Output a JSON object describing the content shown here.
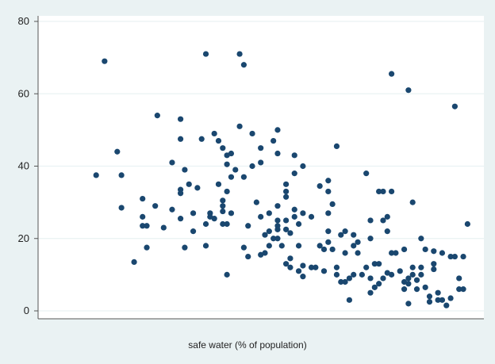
{
  "chart_data": {
    "type": "scatter",
    "title": "",
    "xlabel": "safe water (% of population)",
    "ylabel": "",
    "ylim": [
      0,
      80
    ],
    "yticks": [
      0,
      20,
      40,
      60,
      80
    ],
    "xlim": [
      0,
      100
    ],
    "grid": true,
    "marker_color": "#1a476f",
    "points": [
      [
        10,
        37.5
      ],
      [
        12,
        69
      ],
      [
        15,
        44
      ],
      [
        16,
        37.5
      ],
      [
        16,
        28.5
      ],
      [
        19,
        13.5
      ],
      [
        21,
        31
      ],
      [
        21,
        26
      ],
      [
        21,
        23.5
      ],
      [
        22,
        23.5
      ],
      [
        22,
        17.5
      ],
      [
        24,
        29
      ],
      [
        24.5,
        54
      ],
      [
        26,
        23
      ],
      [
        28,
        41
      ],
      [
        28,
        28
      ],
      [
        30,
        25.5
      ],
      [
        30,
        53
      ],
      [
        30,
        47.5
      ],
      [
        30,
        33.5
      ],
      [
        30,
        32.5
      ],
      [
        31,
        39
      ],
      [
        31,
        17.5
      ],
      [
        32,
        35
      ],
      [
        33,
        27
      ],
      [
        33,
        22
      ],
      [
        34,
        34
      ],
      [
        35,
        47.5
      ],
      [
        36,
        71
      ],
      [
        36,
        18
      ],
      [
        36,
        24
      ],
      [
        37,
        27
      ],
      [
        37,
        26
      ],
      [
        38,
        25.5
      ],
      [
        38,
        49
      ],
      [
        39,
        47
      ],
      [
        39,
        35
      ],
      [
        40,
        45
      ],
      [
        40,
        29
      ],
      [
        40,
        27.5
      ],
      [
        40,
        24
      ],
      [
        40,
        30.5
      ],
      [
        41,
        33
      ],
      [
        41,
        10
      ],
      [
        41,
        43
      ],
      [
        41,
        40.5
      ],
      [
        41,
        24
      ],
      [
        42,
        43.5
      ],
      [
        42,
        27
      ],
      [
        42,
        37
      ],
      [
        43,
        39
      ],
      [
        44,
        51
      ],
      [
        44,
        71
      ],
      [
        45,
        68
      ],
      [
        45,
        37
      ],
      [
        45,
        17.5
      ],
      [
        46,
        23.5
      ],
      [
        46,
        15
      ],
      [
        47,
        49
      ],
      [
        47,
        40
      ],
      [
        48,
        30
      ],
      [
        49,
        45
      ],
      [
        49,
        41
      ],
      [
        49,
        26
      ],
      [
        49,
        15.5
      ],
      [
        50,
        21
      ],
      [
        50,
        16
      ],
      [
        51,
        27
      ],
      [
        51,
        18
      ],
      [
        51,
        22
      ],
      [
        52,
        20
      ],
      [
        52,
        47
      ],
      [
        53,
        43.5
      ],
      [
        53,
        50
      ],
      [
        53,
        29
      ],
      [
        53,
        25
      ],
      [
        53,
        22.5
      ],
      [
        53,
        20
      ],
      [
        53,
        23.5
      ],
      [
        54,
        18
      ],
      [
        55,
        35
      ],
      [
        55,
        33
      ],
      [
        55,
        31.5
      ],
      [
        55,
        25
      ],
      [
        55,
        22.5
      ],
      [
        55,
        13
      ],
      [
        56,
        21.5
      ],
      [
        56,
        14.5
      ],
      [
        56,
        12
      ],
      [
        57,
        43
      ],
      [
        57,
        26
      ],
      [
        57,
        38
      ],
      [
        57,
        28
      ],
      [
        58,
        18
      ],
      [
        58,
        24
      ],
      [
        58,
        11
      ],
      [
        59,
        27
      ],
      [
        59,
        12.5
      ],
      [
        59,
        40
      ],
      [
        59,
        9.5
      ],
      [
        61,
        26
      ],
      [
        61,
        12
      ],
      [
        62,
        12
      ],
      [
        63,
        34.5
      ],
      [
        63,
        18
      ],
      [
        64,
        17
      ],
      [
        64,
        11
      ],
      [
        65,
        36
      ],
      [
        65,
        33
      ],
      [
        65,
        27
      ],
      [
        65,
        22
      ],
      [
        65,
        19
      ],
      [
        66,
        17
      ],
      [
        66,
        29.5
      ],
      [
        67,
        45.5
      ],
      [
        67,
        12
      ],
      [
        67,
        10
      ],
      [
        68,
        21
      ],
      [
        68,
        8
      ],
      [
        69,
        22
      ],
      [
        69,
        16
      ],
      [
        69,
        8
      ],
      [
        70,
        9
      ],
      [
        70,
        3
      ],
      [
        71,
        21
      ],
      [
        71,
        18
      ],
      [
        71,
        10
      ],
      [
        72,
        19
      ],
      [
        72,
        16
      ],
      [
        73,
        10
      ],
      [
        74,
        38
      ],
      [
        74,
        12
      ],
      [
        75,
        25
      ],
      [
        75,
        20
      ],
      [
        75,
        9
      ],
      [
        75,
        5
      ],
      [
        76,
        13
      ],
      [
        76,
        6.5
      ],
      [
        77,
        13
      ],
      [
        77,
        33
      ],
      [
        77,
        7.5
      ],
      [
        78,
        33
      ],
      [
        78,
        25
      ],
      [
        78,
        9
      ],
      [
        79,
        26
      ],
      [
        79,
        22
      ],
      [
        79,
        10.5
      ],
      [
        80,
        65.5
      ],
      [
        80,
        33
      ],
      [
        80,
        10
      ],
      [
        80,
        16
      ],
      [
        81,
        16
      ],
      [
        82,
        11
      ],
      [
        83,
        17
      ],
      [
        83,
        8
      ],
      [
        83,
        6
      ],
      [
        84,
        61
      ],
      [
        84,
        9
      ],
      [
        84,
        7.5
      ],
      [
        84,
        2
      ],
      [
        85,
        30
      ],
      [
        85,
        10
      ],
      [
        85,
        12
      ],
      [
        86,
        8.5
      ],
      [
        86,
        6
      ],
      [
        87,
        20
      ],
      [
        87,
        12
      ],
      [
        87,
        10
      ],
      [
        88,
        17
      ],
      [
        88,
        6.5
      ],
      [
        89,
        4
      ],
      [
        89,
        2.5
      ],
      [
        90,
        16.5
      ],
      [
        90,
        13
      ],
      [
        90,
        11.5
      ],
      [
        91,
        5
      ],
      [
        91,
        3
      ],
      [
        92,
        16
      ],
      [
        92,
        3
      ],
      [
        93,
        1.5
      ],
      [
        94,
        3.5
      ],
      [
        94,
        15
      ],
      [
        95,
        56.5
      ],
      [
        95,
        15
      ],
      [
        96,
        9
      ],
      [
        96,
        6
      ],
      [
        97,
        15
      ],
      [
        97,
        6
      ],
      [
        98,
        24
      ]
    ]
  }
}
